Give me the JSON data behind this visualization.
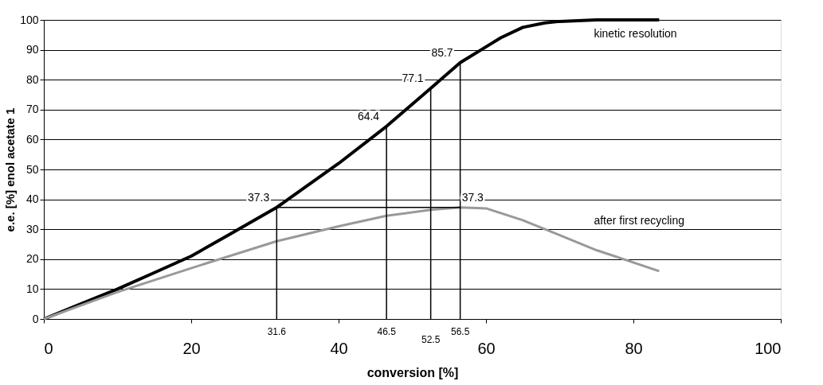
{
  "chart_data": {
    "type": "line",
    "xlabel": "conversion [%]",
    "ylabel": "e.e. [%] enol acetate 1",
    "xlim": [
      0,
      100
    ],
    "xticks": [
      0,
      20,
      40,
      60,
      80,
      100
    ],
    "ylim": [
      0,
      100
    ],
    "yticks": [
      0,
      10,
      20,
      30,
      40,
      50,
      60,
      70,
      80,
      90,
      100
    ],
    "grid": "y",
    "marker": "none",
    "line_style": "solid",
    "series": [
      {
        "name": "kinetic resolution",
        "color": "#000000",
        "x": [
          0,
          5,
          10,
          15,
          20,
          25,
          31.6,
          40,
          46.5,
          52.5,
          56.5,
          60,
          62,
          65,
          68,
          70,
          75,
          83.5
        ],
        "values": [
          0,
          5,
          10,
          15.5,
          21,
          28,
          37.3,
          52,
          64.4,
          77.1,
          85.7,
          91,
          94,
          97.5,
          99,
          99.5,
          100,
          100
        ]
      },
      {
        "name": "after first recycling",
        "color": "#999999",
        "x": [
          0,
          10,
          20,
          31.6,
          40,
          46.5,
          52.5,
          56.5,
          60,
          65,
          70,
          75,
          83.5
        ],
        "values": [
          0,
          9,
          17,
          26,
          31,
          34.5,
          36.5,
          37.3,
          37,
          33,
          28,
          23,
          16
        ]
      },
      {
        "color": "#000000",
        "x": [
          31.6,
          31.6
        ],
        "values": [
          0,
          37.3
        ]
      },
      {
        "color": "#000000",
        "x": [
          46.5,
          46.5
        ],
        "values": [
          0,
          64.4
        ]
      },
      {
        "color": "#000000",
        "x": [
          52.5,
          52.5
        ],
        "values": [
          0,
          77.1
        ]
      },
      {
        "color": "#000000",
        "x": [
          56.5,
          56.5
        ],
        "values": [
          0,
          85.7
        ]
      },
      {
        "color": "#000000",
        "x": [
          31.6,
          56.5
        ],
        "values": [
          37.3,
          37.3
        ]
      }
    ],
    "annotations": [
      {
        "text": "37.3",
        "x": 31.6,
        "y": 37.3
      },
      {
        "text": "64.4",
        "x": 46.5,
        "y": 64.4
      },
      {
        "text": "77.1",
        "x": 52.5,
        "y": 77.1
      },
      {
        "text": "85.7",
        "x": 56.5,
        "y": 85.7
      },
      {
        "text": "37.3",
        "x": 56.5,
        "y": 37.3
      },
      {
        "text": "31.6",
        "x": 31.6,
        "y": 0
      },
      {
        "text": "46.5",
        "x": 46.5,
        "y": 0
      },
      {
        "text": "52.5",
        "x": 52.5,
        "y": 0
      },
      {
        "text": "56.5",
        "x": 56.5,
        "y": 0
      }
    ]
  }
}
